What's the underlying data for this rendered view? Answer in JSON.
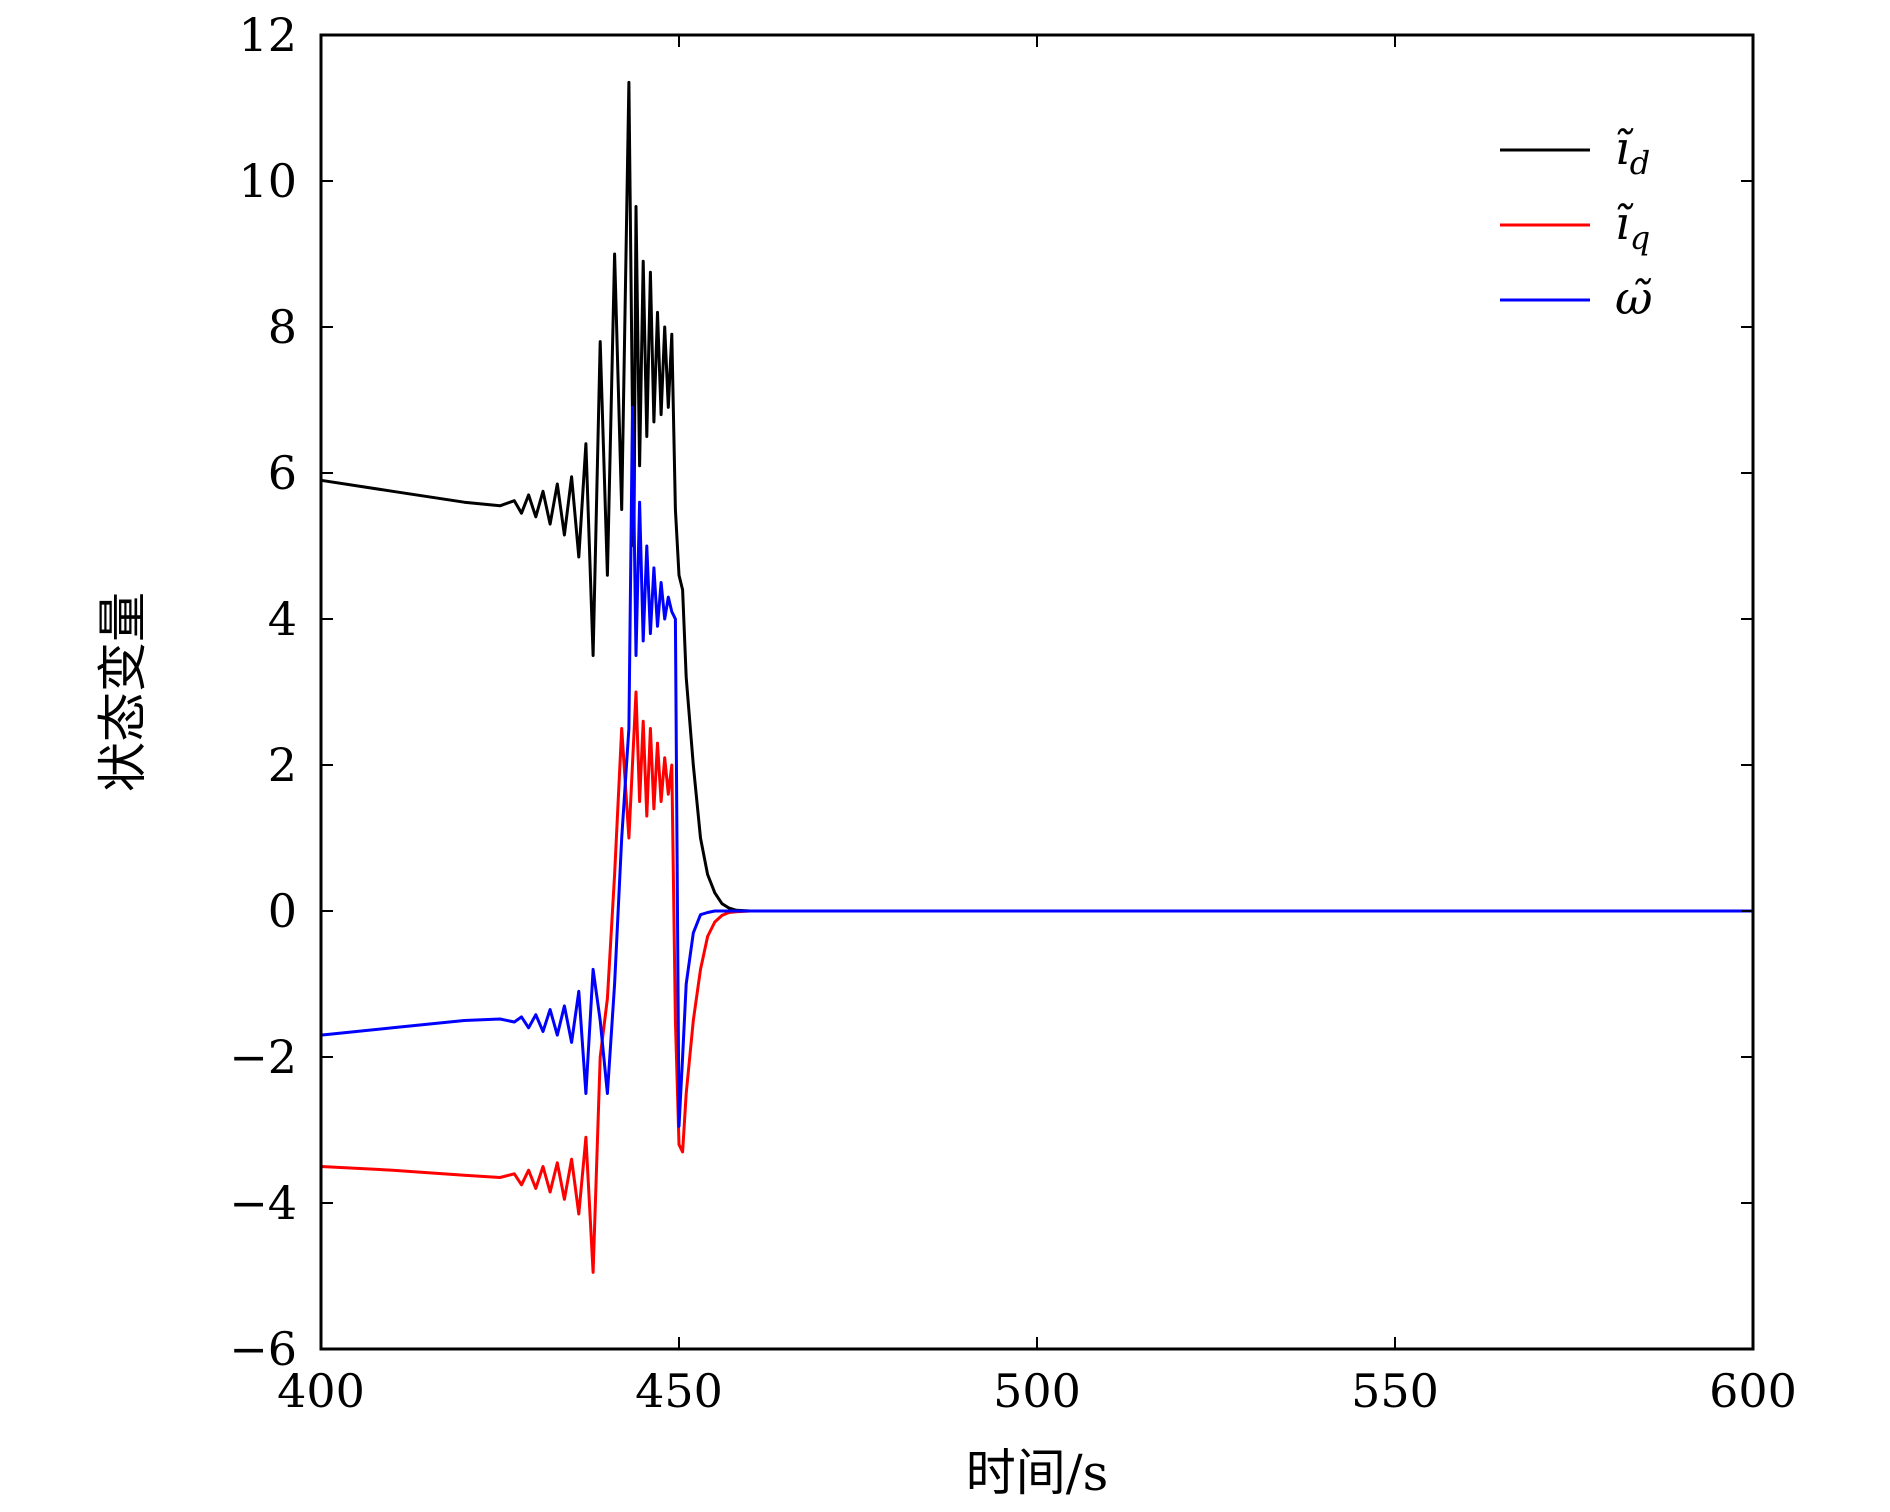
{
  "chart_data": {
    "type": "line",
    "title": "",
    "xlabel": "时间/s",
    "ylabel": "状态变量",
    "xlim": [
      400,
      600
    ],
    "ylim": [
      -6,
      12
    ],
    "xticks": [
      400,
      450,
      500,
      550,
      600
    ],
    "yticks": [
      -6,
      -4,
      -2,
      0,
      2,
      4,
      6,
      8,
      10,
      12
    ],
    "xtick_labels": [
      "400",
      "450",
      "500",
      "550",
      "600"
    ],
    "ytick_labels": [
      "−6",
      "−4",
      "−2",
      "0",
      "2",
      "4",
      "6",
      "8",
      "10",
      "12"
    ],
    "grid": false,
    "legend_position": "top-right",
    "series": [
      {
        "name": "ĩ_d",
        "legend": {
          "base": "ĩ",
          "sub": "d"
        },
        "color": "#000000",
        "x": [
          400,
          410,
          420,
          425,
          427,
          428,
          429,
          430,
          431,
          432,
          433,
          434,
          435,
          436,
          437,
          438,
          439,
          440,
          441,
          442,
          443,
          443.7,
          444,
          444.5,
          445,
          445.5,
          446,
          446.5,
          447,
          447.5,
          448,
          448.5,
          449,
          449.5,
          450,
          450.5,
          451,
          452,
          453,
          454,
          455,
          456,
          457,
          458,
          460,
          600
        ],
        "y": [
          5.9,
          5.75,
          5.6,
          5.55,
          5.62,
          5.45,
          5.7,
          5.4,
          5.75,
          5.3,
          5.85,
          5.15,
          5.95,
          4.85,
          6.4,
          3.5,
          7.8,
          4.6,
          9.0,
          5.5,
          11.35,
          5.0,
          9.65,
          6.1,
          8.9,
          6.5,
          8.75,
          6.7,
          8.2,
          6.8,
          8.0,
          6.9,
          7.9,
          5.5,
          4.6,
          4.4,
          3.2,
          2.0,
          1.0,
          0.5,
          0.25,
          0.1,
          0.04,
          0.01,
          0,
          0
        ]
      },
      {
        "name": "ĩ_q",
        "legend": {
          "base": "ĩ",
          "sub": "q"
        },
        "color": "#ff0000",
        "x": [
          400,
          410,
          420,
          425,
          427,
          428,
          429,
          430,
          431,
          432,
          433,
          434,
          435,
          436,
          437,
          438,
          439,
          440,
          441,
          442,
          443,
          444,
          444.5,
          445,
          445.5,
          446,
          446.5,
          447,
          447.5,
          448,
          448.5,
          449,
          449.5,
          450,
          450.5,
          451,
          452,
          453,
          454,
          455,
          456,
          457,
          458,
          460,
          600
        ],
        "y": [
          -3.5,
          -3.55,
          -3.62,
          -3.65,
          -3.6,
          -3.75,
          -3.55,
          -3.8,
          -3.5,
          -3.85,
          -3.45,
          -3.95,
          -3.4,
          -4.15,
          -3.1,
          -4.95,
          -2.0,
          -1.2,
          0.5,
          2.5,
          1.0,
          3.0,
          1.5,
          2.6,
          1.3,
          2.5,
          1.4,
          2.3,
          1.5,
          2.1,
          1.6,
          2.0,
          -1.5,
          -3.2,
          -3.3,
          -2.5,
          -1.5,
          -0.8,
          -0.35,
          -0.15,
          -0.06,
          -0.02,
          -0.01,
          0,
          0
        ]
      },
      {
        "name": "ω̃",
        "legend": {
          "base": "ω̃",
          "sub": ""
        },
        "color": "#0000ff",
        "x": [
          400,
          410,
          420,
          425,
          427,
          428,
          429,
          430,
          431,
          432,
          433,
          434,
          435,
          436,
          437,
          438,
          439,
          440,
          441,
          442,
          443,
          443.5,
          444,
          444.5,
          445,
          445.5,
          446,
          446.5,
          447,
          447.5,
          448,
          448.5,
          449,
          449.5,
          450,
          450.5,
          451,
          452,
          453,
          454,
          455,
          458,
          460,
          600
        ],
        "y": [
          -1.7,
          -1.6,
          -1.5,
          -1.48,
          -1.52,
          -1.45,
          -1.6,
          -1.42,
          -1.65,
          -1.35,
          -1.7,
          -1.3,
          -1.8,
          -1.1,
          -2.5,
          -0.8,
          -1.5,
          -2.5,
          -1.0,
          1.0,
          2.5,
          6.9,
          3.5,
          5.6,
          3.7,
          5.0,
          3.8,
          4.7,
          3.9,
          4.5,
          4.0,
          4.3,
          4.1,
          4.0,
          -2.95,
          -2.0,
          -1.0,
          -0.3,
          -0.05,
          -0.02,
          0,
          0,
          0,
          0
        ]
      }
    ]
  }
}
